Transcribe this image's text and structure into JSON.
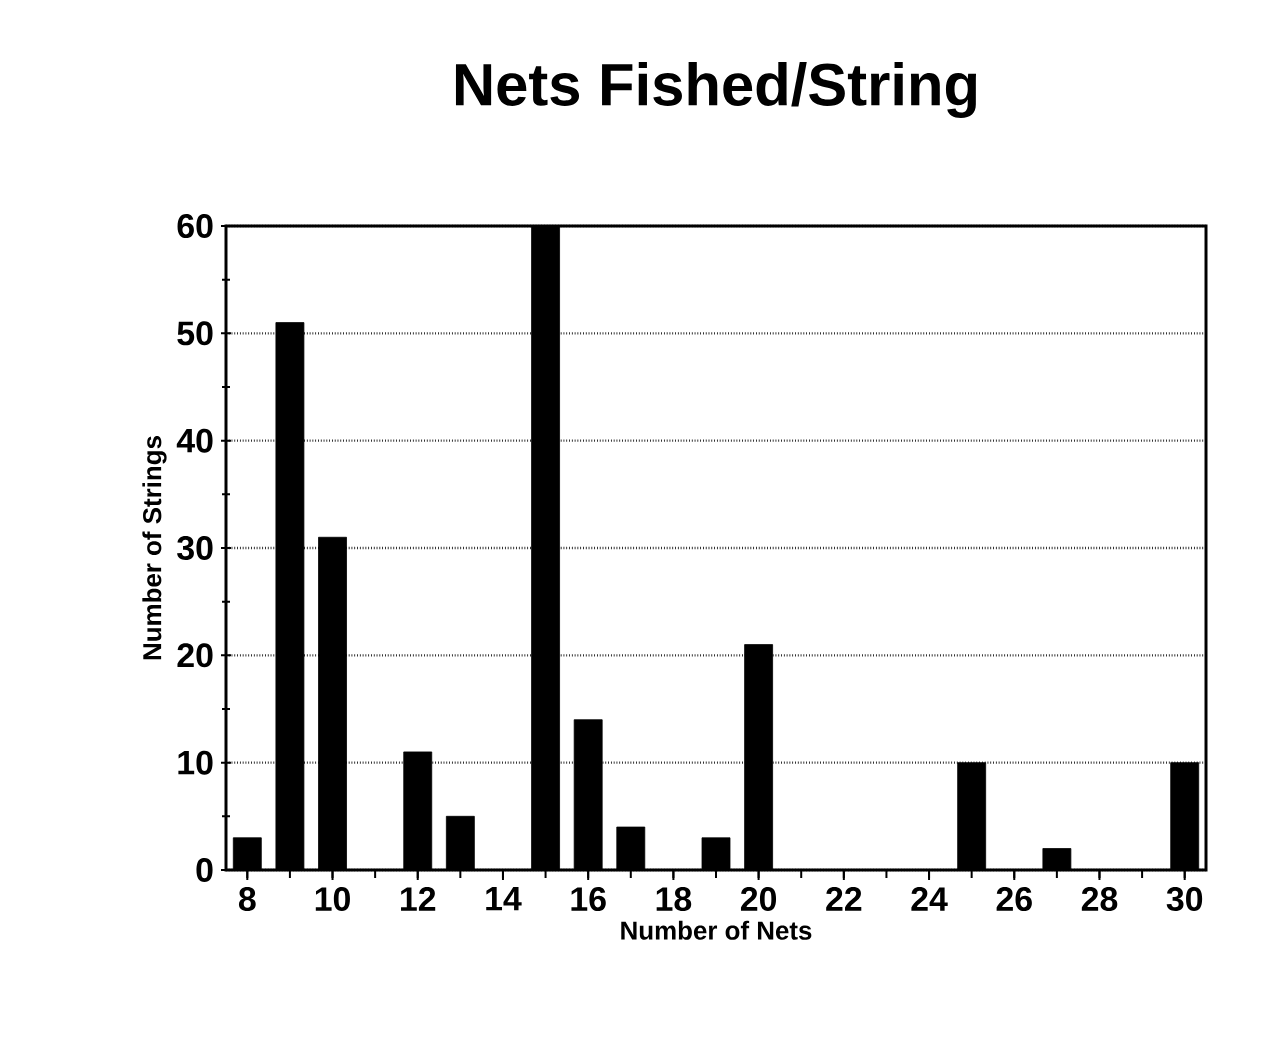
{
  "chart_data": {
    "type": "bar",
    "title": "Nets Fished/String",
    "xlabel": "Number of Nets",
    "ylabel": "Number of Strings",
    "categories": [
      "8",
      null,
      "10",
      null,
      "12",
      null,
      "14",
      null,
      "16",
      null,
      "18",
      null,
      "20",
      null,
      "22",
      null,
      "24",
      null,
      "26",
      null,
      "28",
      null,
      "30"
    ],
    "values": [
      3,
      51,
      31,
      0,
      11,
      5,
      0,
      60,
      14,
      4,
      0,
      3,
      21,
      0,
      0,
      0,
      0,
      10,
      0,
      2,
      0,
      0,
      10
    ],
    "color": "#000000",
    "ylim": [
      0,
      60
    ],
    "yticks": [
      0,
      10,
      20,
      30,
      40,
      50,
      60
    ],
    "grid": "y"
  }
}
